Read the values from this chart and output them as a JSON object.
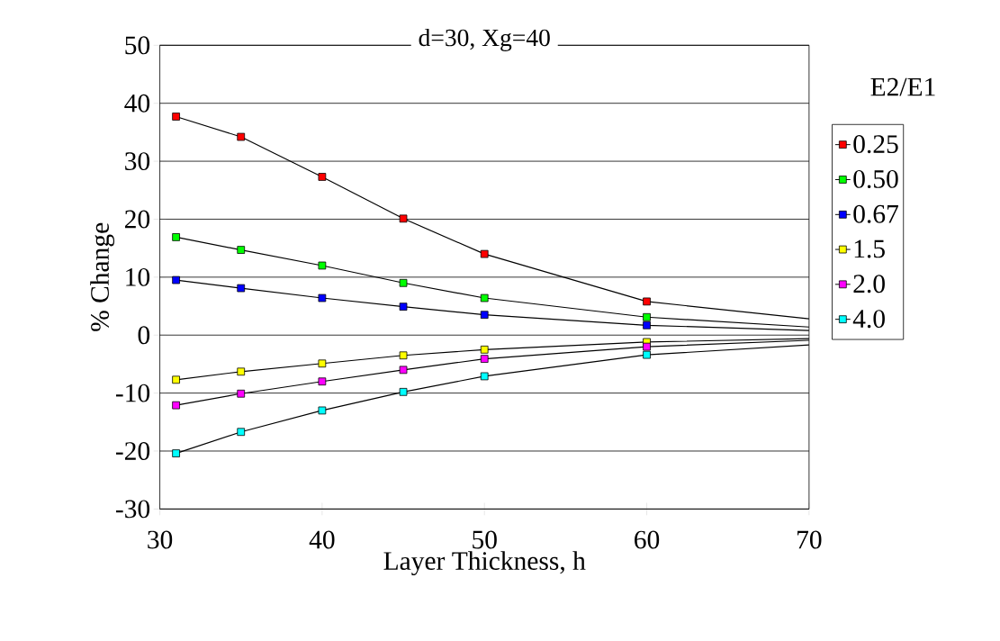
{
  "chart_data": {
    "type": "line",
    "title": "d=30, Xg=40",
    "xlabel": "Layer Thickness, h",
    "ylabel": "% Change",
    "legend_title": "E2/E1",
    "x": [
      31,
      35,
      40,
      45,
      50,
      60,
      70
    ],
    "series": [
      {
        "name": "0.25",
        "color": "#ff0000",
        "values": [
          37.7,
          34.2,
          27.3,
          20.1,
          14.0,
          5.8,
          2.8
        ]
      },
      {
        "name": "0.50",
        "color": "#00ff00",
        "values": [
          16.9,
          14.7,
          12.0,
          9.0,
          6.4,
          3.1,
          1.4
        ]
      },
      {
        "name": "0.67",
        "color": "#0000ff",
        "values": [
          9.5,
          8.1,
          6.4,
          4.9,
          3.5,
          1.7,
          0.8
        ]
      },
      {
        "name": "1.5",
        "color": "#ffff00",
        "values": [
          -7.7,
          -6.3,
          -4.9,
          -3.5,
          -2.5,
          -1.2,
          -0.6
        ]
      },
      {
        "name": "2.0",
        "color": "#ff00ff",
        "values": [
          -12.1,
          -10.1,
          -8.0,
          -6.0,
          -4.1,
          -2.0,
          -0.9
        ]
      },
      {
        "name": "4.0",
        "color": "#00ffff",
        "values": [
          -20.4,
          -16.7,
          -13.0,
          -9.8,
          -7.1,
          -3.4,
          -1.7
        ]
      }
    ],
    "xlim": [
      30,
      70
    ],
    "ylim": [
      -30,
      50
    ],
    "xticks": [
      30,
      40,
      50,
      60,
      70
    ],
    "yticks": [
      -30,
      -20,
      -10,
      0,
      10,
      20,
      30,
      40,
      50
    ],
    "grid": "y",
    "legend": "right",
    "marker": "square",
    "line_style": "solid"
  }
}
